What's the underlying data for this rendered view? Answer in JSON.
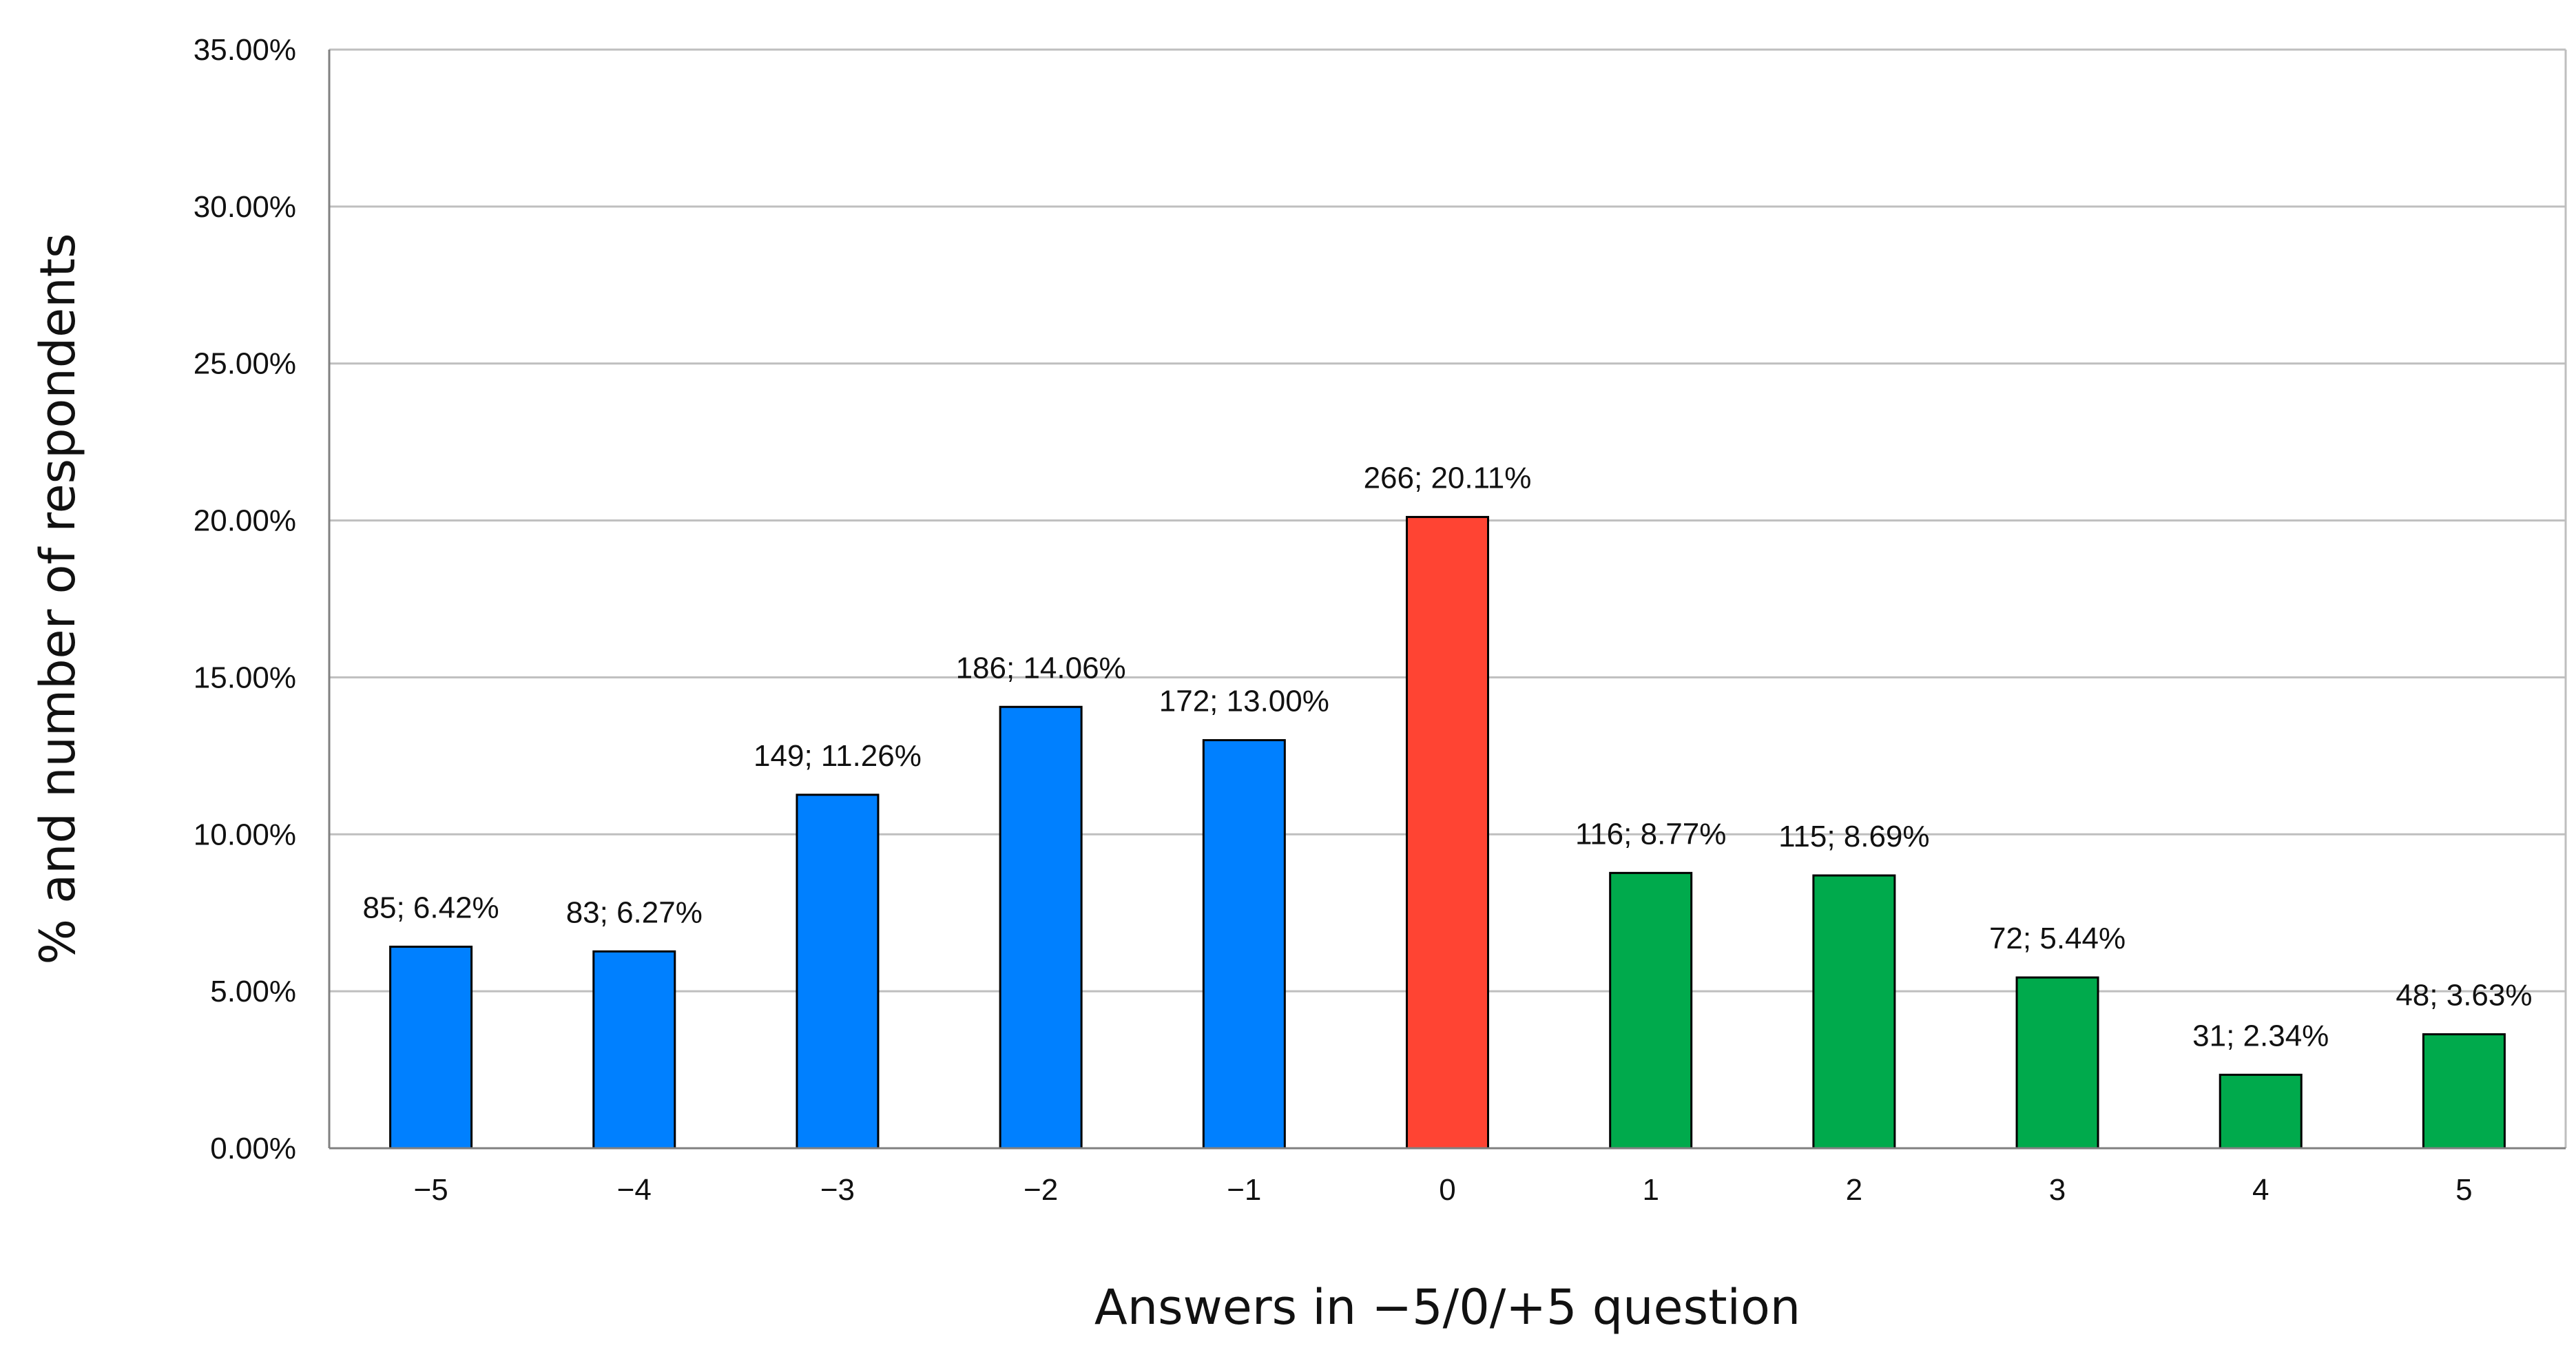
{
  "chart_data": {
    "type": "bar",
    "xlabel": "Answers in −5/0/+5 question",
    "ylabel": "% and number of respondents",
    "categories": [
      "−5",
      "−4",
      "−3",
      "−2",
      "−1",
      "0",
      "1",
      "2",
      "3",
      "4",
      "5"
    ],
    "values": [
      6.42,
      6.27,
      11.26,
      14.06,
      13.0,
      20.11,
      8.77,
      8.69,
      5.44,
      2.34,
      3.63
    ],
    "counts": [
      85,
      83,
      149,
      186,
      172,
      266,
      116,
      115,
      72,
      31,
      48
    ],
    "data_labels": [
      "85; 6.42%",
      "83; 6.27%",
      "149; 11.26%",
      "186; 14.06%",
      "172; 13.00%",
      "266; 20.11%",
      "116; 8.77%",
      "115; 8.69%",
      "72; 5.44%",
      "31; 2.34%",
      "48; 3.63%"
    ],
    "y_ticks": [
      "0.00%",
      "5.00%",
      "10.00%",
      "15.00%",
      "20.00%",
      "25.00%",
      "30.00%",
      "35.00%"
    ],
    "ylim": [
      0,
      35
    ],
    "grid": true,
    "legend": "none",
    "bar_colors": [
      "#0080FF",
      "#0080FF",
      "#0080FF",
      "#0080FF",
      "#0080FF",
      "#FF4433",
      "#00AA4C",
      "#00AA4C",
      "#00AA4C",
      "#00AA4C",
      "#00AA4C"
    ],
    "bar_outline_color": "#000000",
    "grid_color": "#BFBFBF"
  }
}
